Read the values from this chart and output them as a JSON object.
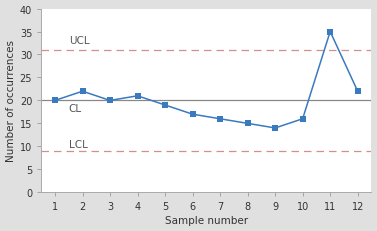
{
  "x": [
    1,
    2,
    3,
    4,
    5,
    6,
    7,
    8,
    9,
    10,
    11,
    12
  ],
  "y": [
    20,
    22,
    20,
    21,
    19,
    17,
    16,
    15,
    14,
    16,
    35,
    22
  ],
  "UCL": 31,
  "CL": 20,
  "LCL": 9,
  "UCL_label": "UCL",
  "CL_label": "CL",
  "LCL_label": "LCL",
  "xlabel": "Sample number",
  "ylabel": "Number of occurrences",
  "ylim": [
    0,
    40
  ],
  "yticks": [
    0,
    5,
    10,
    15,
    20,
    25,
    30,
    35,
    40
  ],
  "xticks": [
    1,
    2,
    3,
    4,
    5,
    6,
    7,
    8,
    9,
    10,
    11,
    12
  ],
  "line_color": "#3a7abf",
  "marker_color": "#3a7abf",
  "CL_color": "#888888",
  "UCL_LCL_color": "#d09090",
  "bg_color": "#e0e0e0",
  "plot_bg_color": "#ffffff",
  "label_fontsize": 7.5,
  "tick_fontsize": 7,
  "control_label_fontsize": 7.5
}
